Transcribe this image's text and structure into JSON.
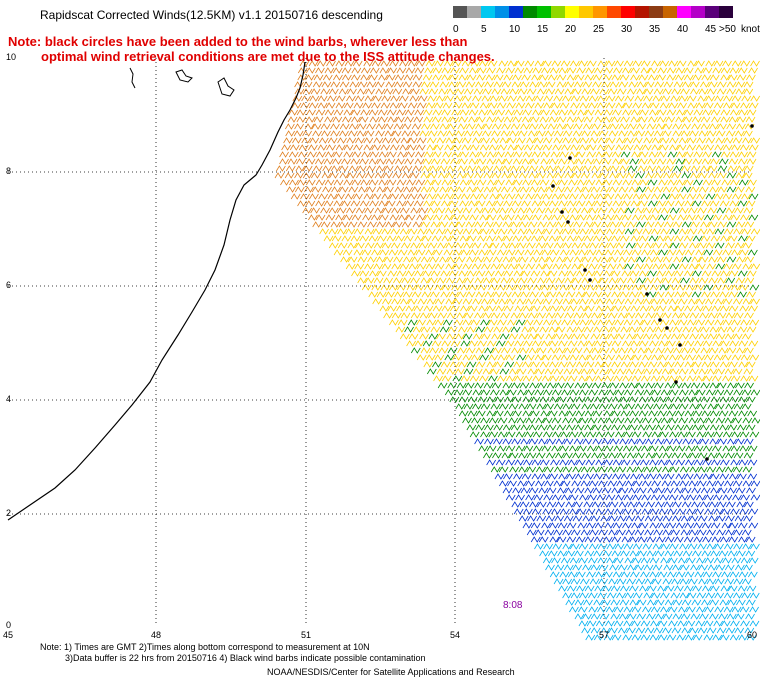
{
  "title": "Rapidscat Corrected Winds(12.5KM) v1.1 20150716 descending",
  "note": {
    "line1": "Note: black circles have been added to the wind barbs, wherever less than",
    "line2": "optimal wind retrieval conditions are met due to the ISS attitude changes."
  },
  "legend": {
    "unit_label": "knots",
    "bins": [
      {
        "label": "0",
        "color": "#555555"
      },
      {
        "label": "",
        "color": "#a8a8a8"
      },
      {
        "label": "5",
        "color": "#00c8f0"
      },
      {
        "label": "",
        "color": "#0090e8"
      },
      {
        "label": "10",
        "color": "#0030d0"
      },
      {
        "label": "",
        "color": "#008a00"
      },
      {
        "label": "15",
        "color": "#00c000"
      },
      {
        "label": "",
        "color": "#90d800"
      },
      {
        "label": "20",
        "color": "#ffff00"
      },
      {
        "label": "",
        "color": "#ffc800"
      },
      {
        "label": "25",
        "color": "#ff9600"
      },
      {
        "label": "",
        "color": "#ff4800"
      },
      {
        "label": "30",
        "color": "#ff0000"
      },
      {
        "label": "",
        "color": "#b41400"
      },
      {
        "label": "35",
        "color": "#8c3c14"
      },
      {
        "label": "",
        "color": "#c86400"
      },
      {
        "label": "40",
        "color": "#ff00ff"
      },
      {
        "label": "",
        "color": "#b400c8"
      },
      {
        "label": "45",
        "color": "#5a007a"
      },
      {
        "label": ">50",
        "color": "#2a003c"
      }
    ]
  },
  "axes": {
    "y_ticks": [
      "10",
      "8",
      "6",
      "4",
      "2",
      "0"
    ],
    "x_ticks": [
      "45",
      "48",
      "51",
      "54",
      "57",
      "60"
    ]
  },
  "time_label": "8:08",
  "footer": {
    "line1": "Note: 1) Times are GMT 2)Times along bottom correspond to measurement at 10N",
    "line2": "3)Data buffer is 22 hrs from 20150716 4) Black wind barbs indicate possible contamination",
    "line3": "NOAA/NESDIS/Center for Satellite Applications and Research"
  },
  "colors": {
    "coastline": "#000000",
    "note_text": "#e00000",
    "time_label": "#8a00a0",
    "barb_blue": "#0030d0",
    "barb_cyan": "#00b0f0",
    "barb_green": "#008a00",
    "barb_yellow": "#ffd000",
    "barb_orange": "#e08020"
  }
}
